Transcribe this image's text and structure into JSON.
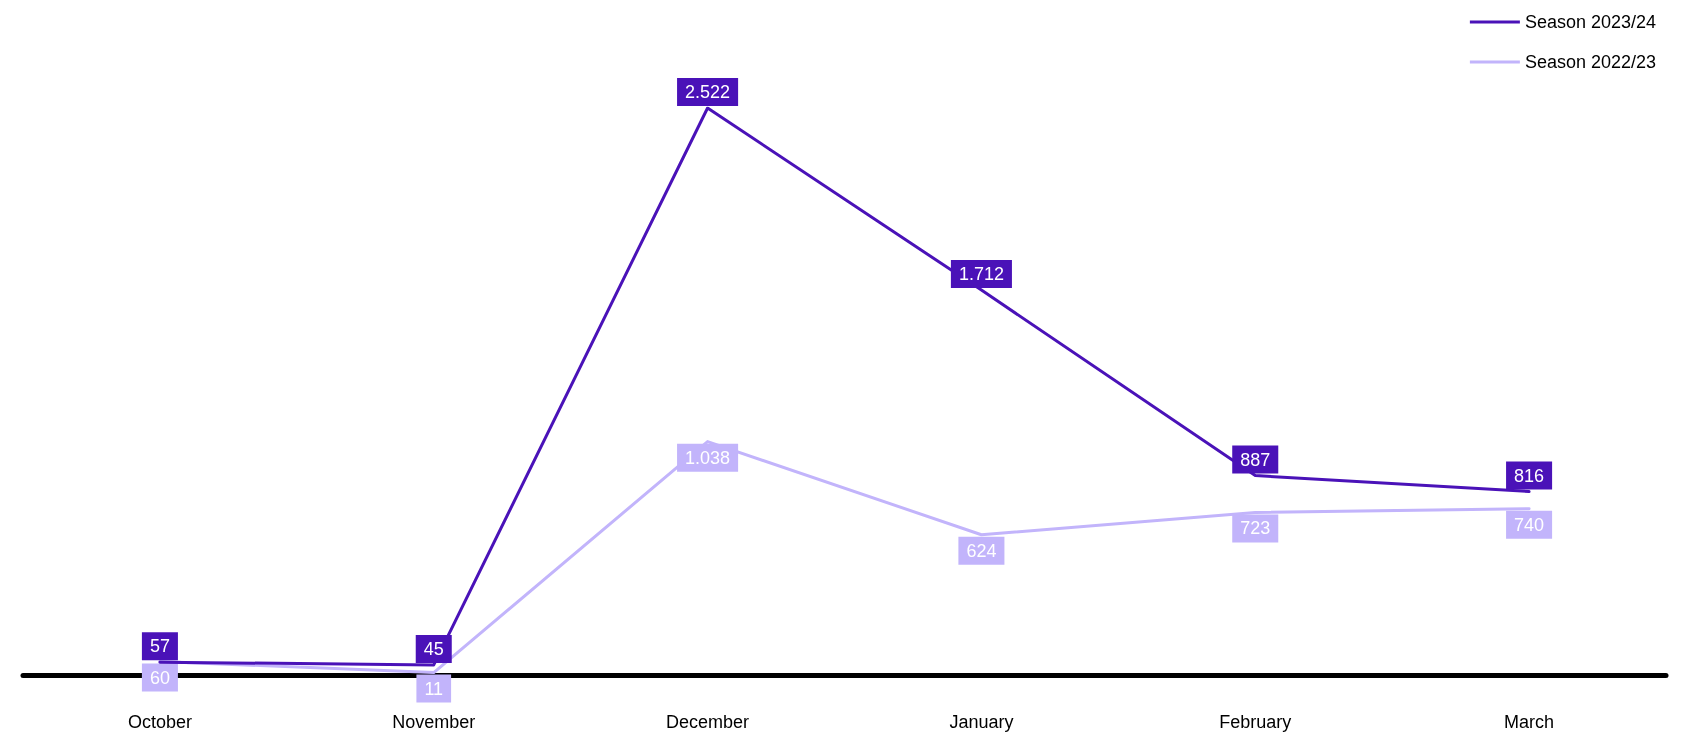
{
  "chart_data": {
    "type": "line",
    "categories": [
      "October",
      "November",
      "December",
      "January",
      "February",
      "March"
    ],
    "series": [
      {
        "name": "Season 2023/24",
        "color": "#4a12b8",
        "values": [
          57,
          45,
          2522,
          1712,
          887,
          816
        ],
        "value_labels": [
          "57",
          "45",
          "2.522",
          "1.712",
          "887",
          "816"
        ]
      },
      {
        "name": "Season 2022/23",
        "color": "#c2b4fb",
        "values": [
          60,
          11,
          1038,
          624,
          723,
          740
        ],
        "value_labels": [
          "60",
          "11",
          "1.038",
          "624",
          "723",
          "740"
        ]
      }
    ],
    "legend": "top right",
    "grid": false,
    "marker": "none",
    "line_style": "solid",
    "tick_labels": "x"
  }
}
